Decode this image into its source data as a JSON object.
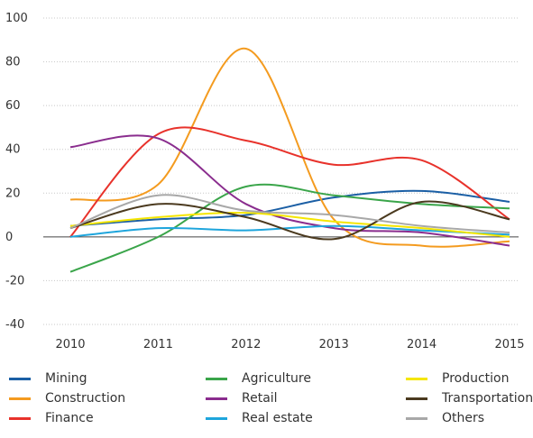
{
  "chart_data": {
    "type": "line",
    "title": "",
    "xlabel": "",
    "ylabel": "",
    "x": [
      "2010",
      "2011",
      "2012",
      "2013",
      "2014",
      "2015"
    ],
    "ylim": [
      -40,
      100
    ],
    "yticks": [
      "100",
      "80",
      "60",
      "40",
      "20",
      "0",
      "-20",
      "-40"
    ],
    "grid": true,
    "legend_position": "bottom",
    "series": [
      {
        "name": "Mining",
        "color": "#1b5fa5",
        "values": [
          5,
          8,
          10,
          18,
          21,
          16
        ]
      },
      {
        "name": "Construction",
        "color": "#f49b1f",
        "values": [
          17,
          24,
          86,
          8,
          -4,
          -2
        ]
      },
      {
        "name": "Finance",
        "color": "#e8322b",
        "values": [
          0,
          47,
          44,
          33,
          35,
          8
        ]
      },
      {
        "name": "Agriculture",
        "color": "#3aa54a",
        "values": [
          -16,
          0,
          23,
          19,
          15,
          13
        ]
      },
      {
        "name": "Retail",
        "color": "#8a2d8e",
        "values": [
          41,
          45,
          15,
          4,
          2,
          -4
        ]
      },
      {
        "name": "Real estate",
        "color": "#1ea5dc",
        "values": [
          0,
          4,
          3,
          5,
          3,
          1
        ]
      },
      {
        "name": "Production",
        "color": "#f5e600",
        "values": [
          5,
          9,
          11,
          7,
          4,
          0
        ]
      },
      {
        "name": "Transportation",
        "color": "#4b3a1f",
        "values": [
          4,
          15,
          9,
          -1,
          16,
          8
        ]
      },
      {
        "name": "Others",
        "color": "#a8a8a8",
        "values": [
          4,
          19,
          12,
          10,
          5,
          2
        ]
      }
    ]
  }
}
